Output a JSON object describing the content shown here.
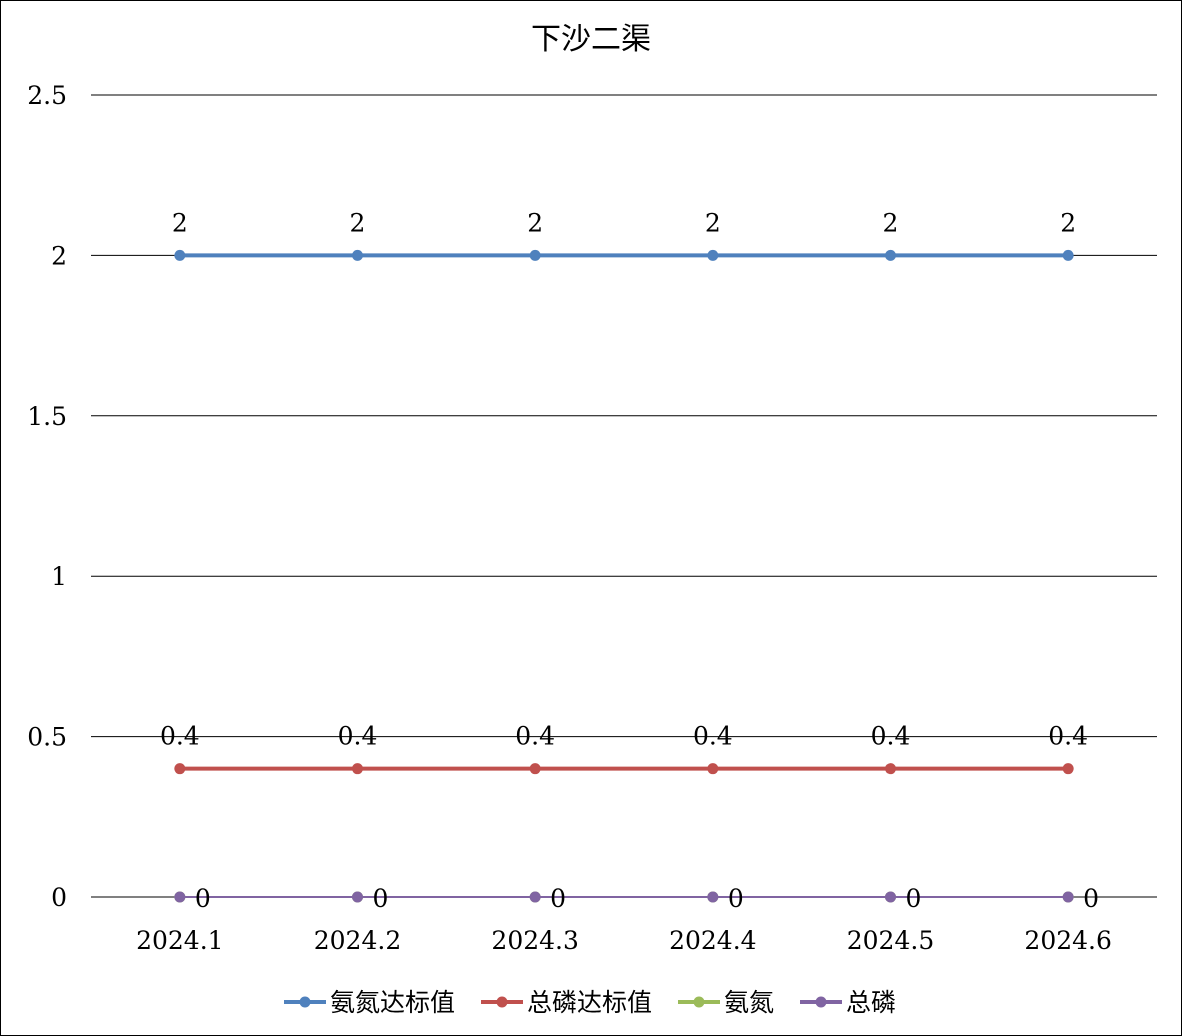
{
  "chart_data": {
    "type": "line",
    "title": "下沙二渠",
    "xlabel": "",
    "ylabel": "",
    "categories": [
      "2024.1",
      "2024.2",
      "2024.3",
      "2024.4",
      "2024.5",
      "2024.6"
    ],
    "ylim": [
      0,
      2.5
    ],
    "yticks": [
      "0",
      "0.5",
      "1",
      "1.5",
      "2",
      "2.5"
    ],
    "grid": true,
    "legend_position": "bottom",
    "series": [
      {
        "name": "氨氮达标值",
        "values": [
          2,
          2,
          2,
          2,
          2,
          2
        ],
        "color": "#4f81bd",
        "labels": true
      },
      {
        "name": "总磷达标值",
        "values": [
          0.4,
          0.4,
          0.4,
          0.4,
          0.4,
          0.4
        ],
        "color": "#c0504d",
        "labels": true
      },
      {
        "name": "氨氮",
        "values": [
          0,
          0,
          0,
          0,
          0,
          0
        ],
        "color": "#9bbb59",
        "labels": false
      },
      {
        "name": "总磷",
        "values": [
          0,
          0,
          0,
          0,
          0,
          0
        ],
        "color": "#8064a2",
        "labels": true
      }
    ]
  }
}
